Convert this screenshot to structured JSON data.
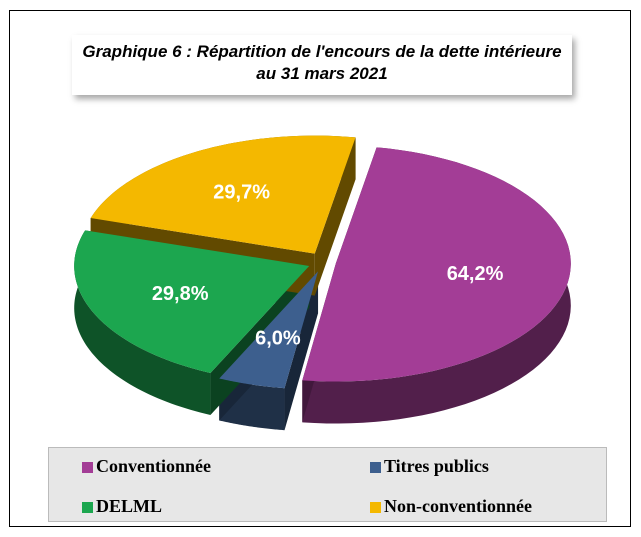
{
  "chart_data": {
    "type": "pie3d",
    "title": "Graphique 6 : Répartition de l'encours de la dette intérieure au 31 mars 2021",
    "categories": [
      "Conventionnée",
      "Titres publics",
      "DELML",
      "Non-conventionnée"
    ],
    "values": [
      64.2,
      6.0,
      29.8,
      29.7
    ],
    "value_labels": [
      "64,2%",
      "6,0%",
      "29,8%",
      "29,7%"
    ],
    "colors": [
      "#a33d96",
      "#3d5f8e",
      "#1ca64f",
      "#f4b800"
    ],
    "legend": "bottom"
  }
}
